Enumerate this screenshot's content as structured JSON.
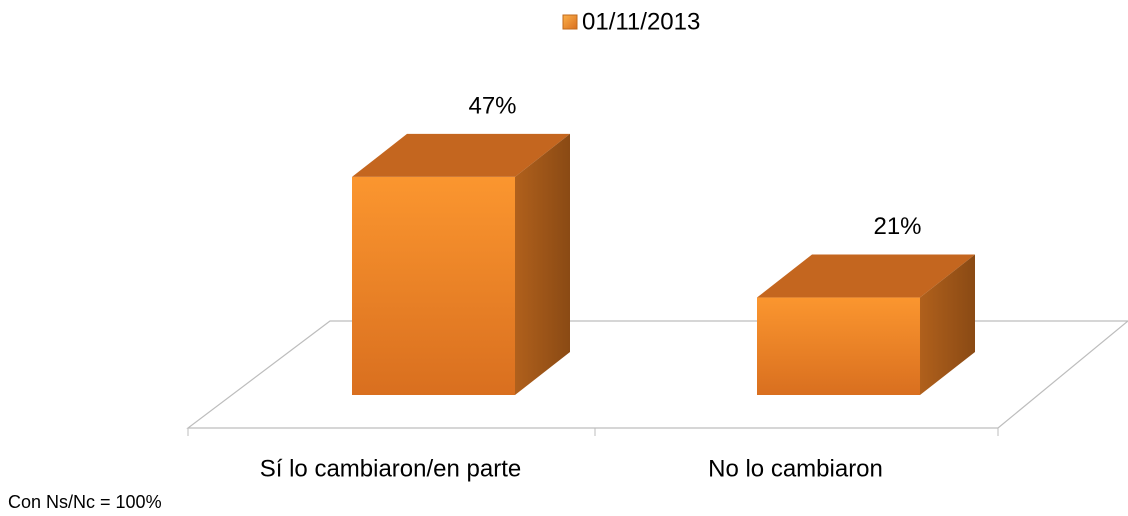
{
  "chart_data": {
    "type": "bar",
    "categories": [
      "Sí lo cambiaron/en parte",
      "No lo cambiaron"
    ],
    "series": [
      {
        "name": "01/11/2013",
        "color": "#f7922f",
        "values": [
          47,
          21
        ],
        "value_labels": [
          "47%",
          "21%"
        ]
      }
    ],
    "ylim": [
      0,
      50
    ],
    "annotation": "Con Ns/Nc = 100%",
    "legend": "top"
  }
}
